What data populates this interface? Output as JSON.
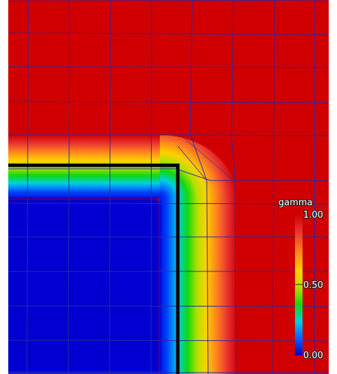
{
  "plot": {
    "field": "gamma",
    "colorbar": {
      "title": "gamma",
      "ticks": [
        "1.00",
        "0.50",
        "0.00"
      ],
      "colors": [
        "#0000d0",
        "#0060ff",
        "#00d0e0",
        "#10d810",
        "#b0e000",
        "#ffd000",
        "#ff8020",
        "#e83030",
        "#d00000"
      ]
    },
    "interior_color": "#0000d0",
    "exterior_color": "#d00000",
    "mesh_color": "#2a2aa8",
    "boundary_color": "#000000"
  }
}
